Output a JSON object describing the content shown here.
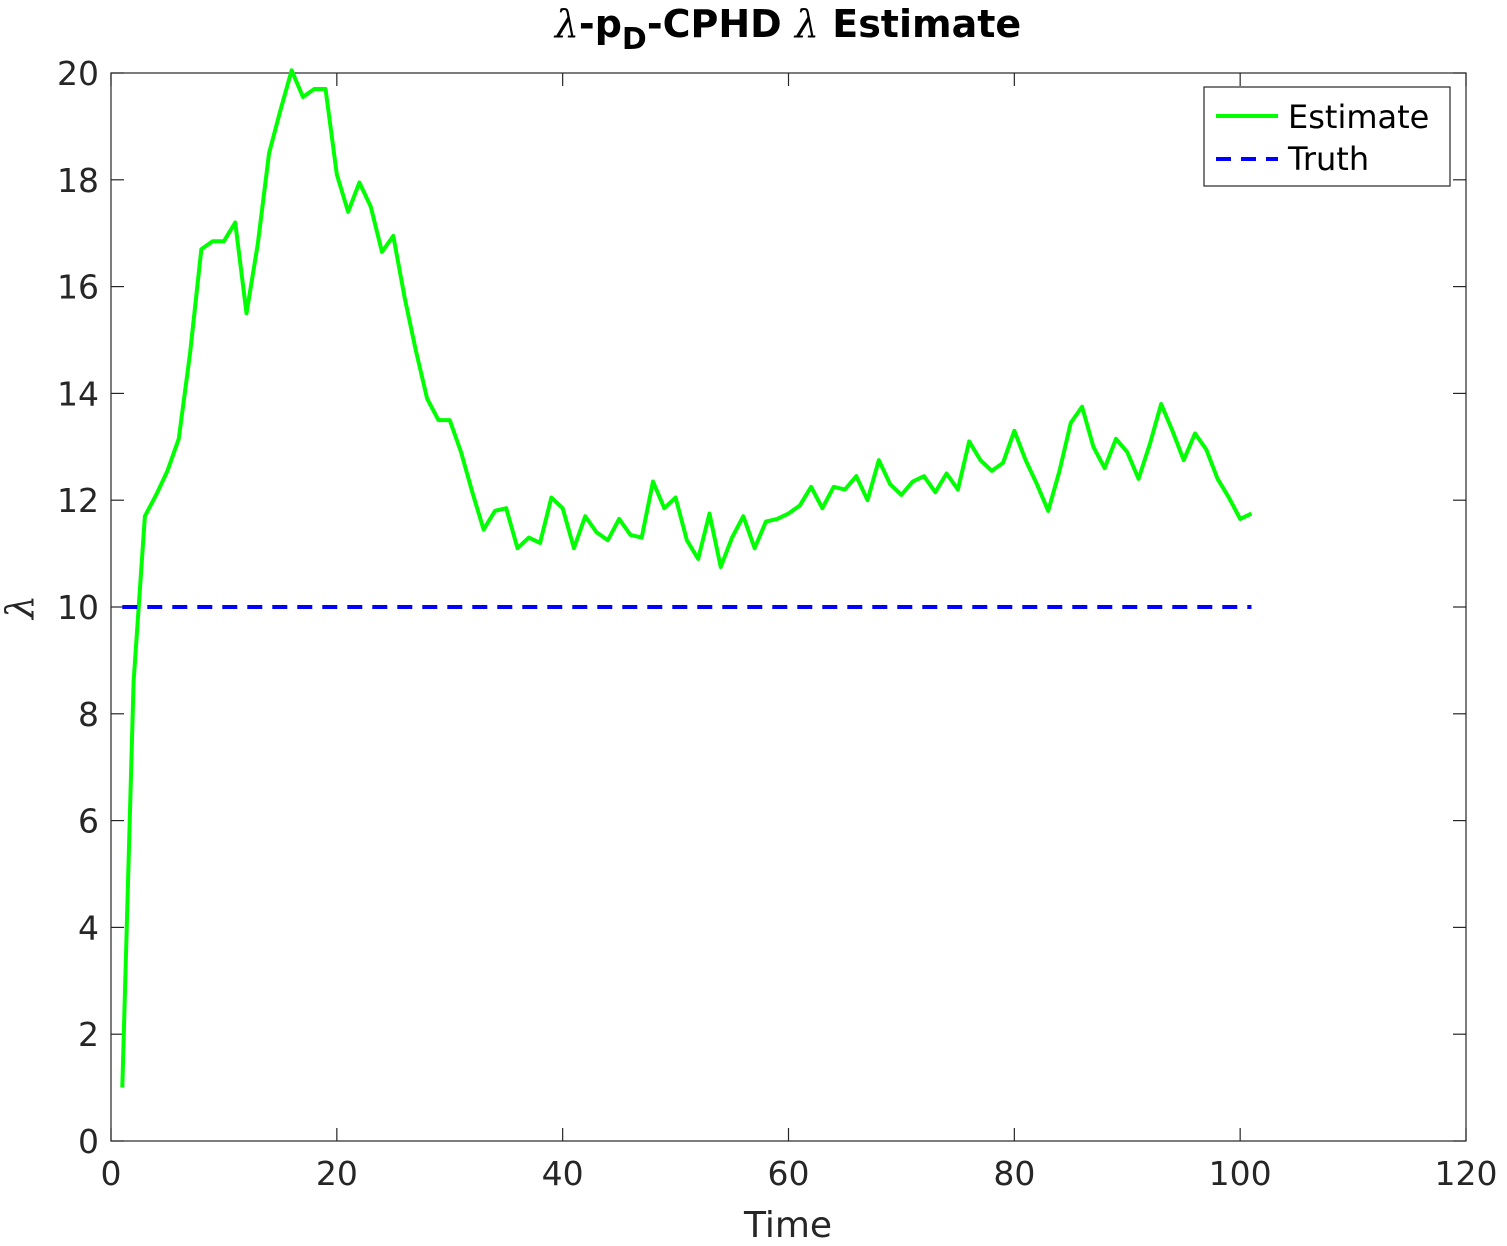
{
  "chart_data": {
    "type": "line",
    "title_parts": {
      "lambda": "λ",
      "dash1": "-p",
      "sub": "D",
      "middle": "-CPHD ",
      "lambda2": "λ",
      "end": " Estimate"
    },
    "xlabel": "Time",
    "ylabel": "λ",
    "xlim": [
      0,
      120
    ],
    "ylim": [
      0,
      20
    ],
    "xticks": [
      0,
      20,
      40,
      60,
      80,
      100,
      120
    ],
    "yticks": [
      0,
      2,
      4,
      6,
      8,
      10,
      12,
      14,
      16,
      18,
      20
    ],
    "grid": false,
    "legend_position": "top-right",
    "series": [
      {
        "name": "Estimate",
        "color": "#00ff00",
        "style": "solid",
        "x": [
          1,
          2,
          3,
          4,
          5,
          6,
          7,
          8,
          9,
          10,
          11,
          12,
          13,
          14,
          15,
          16,
          17,
          18,
          19,
          20,
          21,
          22,
          23,
          24,
          25,
          26,
          27,
          28,
          29,
          30,
          31,
          32,
          33,
          34,
          35,
          36,
          37,
          38,
          39,
          40,
          41,
          42,
          43,
          44,
          45,
          46,
          47,
          48,
          49,
          50,
          51,
          52,
          53,
          54,
          55,
          56,
          57,
          58,
          59,
          60,
          61,
          62,
          63,
          64,
          65,
          66,
          67,
          68,
          69,
          70,
          71,
          72,
          73,
          74,
          75,
          76,
          77,
          78,
          79,
          80,
          81,
          82,
          83,
          84,
          85,
          86,
          87,
          88,
          89,
          90,
          91,
          92,
          93,
          94,
          95,
          96,
          97,
          98,
          99,
          100,
          101
        ],
        "values": [
          1.0,
          8.6,
          11.7,
          12.1,
          12.55,
          13.15,
          14.75,
          16.7,
          16.85,
          16.85,
          17.2,
          15.5,
          16.8,
          18.5,
          19.3,
          20.05,
          19.55,
          19.7,
          19.7,
          18.1,
          17.4,
          17.95,
          17.5,
          16.65,
          16.95,
          15.8,
          14.8,
          13.9,
          13.5,
          13.5,
          12.9,
          12.15,
          11.45,
          11.8,
          11.85,
          11.1,
          11.3,
          11.2,
          12.05,
          11.85,
          11.1,
          11.7,
          11.4,
          11.25,
          11.65,
          11.35,
          11.3,
          12.35,
          11.85,
          12.05,
          11.25,
          10.9,
          11.75,
          10.75,
          11.3,
          11.7,
          11.1,
          11.6,
          11.65,
          11.75,
          11.9,
          12.25,
          11.85,
          12.25,
          12.2,
          12.45,
          12.0,
          12.75,
          12.3,
          12.1,
          12.35,
          12.45,
          12.15,
          12.5,
          12.2,
          13.1,
          12.75,
          12.55,
          12.7,
          13.3,
          12.75,
          12.3,
          11.8,
          12.55,
          13.45,
          13.75,
          13.0,
          12.6,
          13.15,
          12.9,
          12.4,
          13.05,
          13.8,
          13.3,
          12.75,
          13.25,
          12.95,
          12.4,
          12.05,
          11.65,
          11.75
        ]
      },
      {
        "name": "Truth",
        "color": "#0000ff",
        "style": "dashed",
        "x": [
          1,
          101
        ],
        "values": [
          10,
          10
        ]
      }
    ]
  }
}
